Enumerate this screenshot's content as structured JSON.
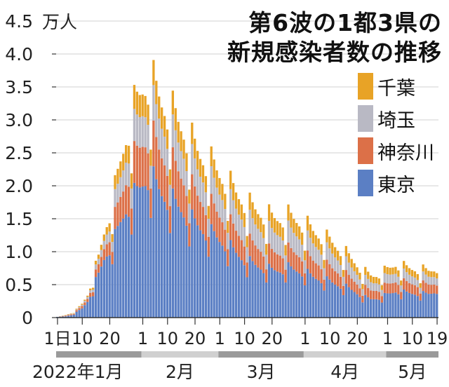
{
  "chart_data": {
    "type": "bar",
    "stacked": true,
    "title_line1": "第6波の1都3県の",
    "title_line2": "新規感染者数の推移",
    "unit": "万人",
    "ylim": [
      0,
      4.5
    ],
    "yticks": [
      "0",
      "0.5",
      "1.0",
      "1.5",
      "2.0",
      "2.5",
      "3.0",
      "3.5",
      "4.0",
      "4.5"
    ],
    "x_day_ticks": [
      "1日",
      "10",
      "20",
      "1",
      "10",
      "20",
      "1",
      "10",
      "20",
      "1",
      "10",
      "20",
      "1",
      "10",
      "19"
    ],
    "month_labels": [
      "2022年1月",
      "2月",
      "3月",
      "4月",
      "5月"
    ],
    "series": [
      {
        "name": "東京",
        "color": "#5b7fc4",
        "anchors": [
          [
            1,
            0.01
          ],
          [
            4,
            0.02
          ],
          [
            6,
            0.04
          ],
          [
            8,
            0.08
          ],
          [
            10,
            0.14
          ],
          [
            12,
            0.25
          ],
          [
            14,
            0.45
          ],
          [
            16,
            0.65
          ],
          [
            18,
            0.9
          ],
          [
            20,
            1.05
          ],
          [
            22,
            1.2
          ],
          [
            24,
            1.45
          ],
          [
            26,
            1.65
          ],
          [
            28,
            1.75
          ],
          [
            30,
            1.9
          ],
          [
            32,
            2.05
          ],
          [
            34,
            2.15
          ],
          [
            36,
            2.05
          ],
          [
            38,
            1.95
          ],
          [
            40,
            1.85
          ],
          [
            43,
            1.75
          ],
          [
            46,
            1.65
          ],
          [
            49,
            1.5
          ],
          [
            52,
            1.4
          ],
          [
            55,
            1.3
          ],
          [
            58,
            1.25
          ],
          [
            61,
            1.15
          ],
          [
            64,
            1.05
          ],
          [
            67,
            0.95
          ],
          [
            70,
            0.85
          ],
          [
            73,
            0.8
          ],
          [
            76,
            0.75
          ],
          [
            79,
            0.72
          ],
          [
            82,
            0.72
          ],
          [
            85,
            0.75
          ],
          [
            88,
            0.72
          ],
          [
            91,
            0.68
          ],
          [
            94,
            0.62
          ],
          [
            97,
            0.58
          ],
          [
            100,
            0.55
          ],
          [
            103,
            0.5
          ],
          [
            106,
            0.46
          ],
          [
            109,
            0.4
          ],
          [
            112,
            0.32
          ],
          [
            115,
            0.28
          ],
          [
            118,
            0.3
          ],
          [
            121,
            0.35
          ],
          [
            124,
            0.4
          ],
          [
            127,
            0.38
          ],
          [
            130,
            0.37
          ],
          [
            133,
            0.36
          ],
          [
            136,
            0.36
          ],
          [
            139,
            0.4
          ]
        ]
      },
      {
        "name": "神奈川",
        "color": "#dc7048",
        "anchors": [
          [
            1,
            0.0
          ],
          [
            4,
            0.01
          ],
          [
            8,
            0.02
          ],
          [
            12,
            0.05
          ],
          [
            16,
            0.12
          ],
          [
            20,
            0.22
          ],
          [
            24,
            0.38
          ],
          [
            28,
            0.55
          ],
          [
            32,
            0.62
          ],
          [
            36,
            0.62
          ],
          [
            40,
            0.58
          ],
          [
            44,
            0.55
          ],
          [
            48,
            0.5
          ],
          [
            52,
            0.45
          ],
          [
            56,
            0.42
          ],
          [
            60,
            0.38
          ],
          [
            64,
            0.35
          ],
          [
            68,
            0.32
          ],
          [
            72,
            0.3
          ],
          [
            76,
            0.28
          ],
          [
            80,
            0.27
          ],
          [
            84,
            0.27
          ],
          [
            88,
            0.26
          ],
          [
            92,
            0.25
          ],
          [
            96,
            0.24
          ],
          [
            100,
            0.22
          ],
          [
            104,
            0.2
          ],
          [
            108,
            0.17
          ],
          [
            112,
            0.14
          ],
          [
            116,
            0.13
          ],
          [
            120,
            0.14
          ],
          [
            124,
            0.16
          ],
          [
            128,
            0.15
          ],
          [
            132,
            0.15
          ],
          [
            136,
            0.14
          ],
          [
            139,
            0.14
          ]
        ]
      },
      {
        "name": "埼玉",
        "color": "#b9b9c4",
        "anchors": [
          [
            1,
            0.0
          ],
          [
            4,
            0.005
          ],
          [
            8,
            0.01
          ],
          [
            12,
            0.03
          ],
          [
            16,
            0.08
          ],
          [
            20,
            0.18
          ],
          [
            24,
            0.3
          ],
          [
            28,
            0.42
          ],
          [
            32,
            0.48
          ],
          [
            36,
            0.48
          ],
          [
            40,
            0.46
          ],
          [
            44,
            0.44
          ],
          [
            48,
            0.42
          ],
          [
            52,
            0.4
          ],
          [
            56,
            0.38
          ],
          [
            60,
            0.36
          ],
          [
            64,
            0.34
          ],
          [
            68,
            0.33
          ],
          [
            72,
            0.32
          ],
          [
            76,
            0.31
          ],
          [
            80,
            0.3
          ],
          [
            84,
            0.3
          ],
          [
            88,
            0.29
          ],
          [
            92,
            0.27
          ],
          [
            96,
            0.25
          ],
          [
            100,
            0.23
          ],
          [
            104,
            0.2
          ],
          [
            108,
            0.17
          ],
          [
            112,
            0.14
          ],
          [
            116,
            0.12
          ],
          [
            120,
            0.13
          ],
          [
            124,
            0.14
          ],
          [
            128,
            0.13
          ],
          [
            132,
            0.12
          ],
          [
            136,
            0.12
          ],
          [
            139,
            0.12
          ]
        ]
      },
      {
        "name": "千葉",
        "color": "#e8a326",
        "anchors": [
          [
            1,
            0.0
          ],
          [
            4,
            0.005
          ],
          [
            8,
            0.01
          ],
          [
            12,
            0.02
          ],
          [
            16,
            0.06
          ],
          [
            20,
            0.14
          ],
          [
            24,
            0.24
          ],
          [
            28,
            0.32
          ],
          [
            32,
            0.34
          ],
          [
            36,
            0.34
          ],
          [
            40,
            0.33
          ],
          [
            44,
            0.32
          ],
          [
            48,
            0.3
          ],
          [
            52,
            0.28
          ],
          [
            56,
            0.27
          ],
          [
            60,
            0.26
          ],
          [
            64,
            0.25
          ],
          [
            68,
            0.24
          ],
          [
            72,
            0.23
          ],
          [
            76,
            0.23
          ],
          [
            80,
            0.22
          ],
          [
            84,
            0.22
          ],
          [
            88,
            0.21
          ],
          [
            92,
            0.2
          ],
          [
            96,
            0.18
          ],
          [
            100,
            0.17
          ],
          [
            104,
            0.15
          ],
          [
            108,
            0.13
          ],
          [
            112,
            0.11
          ],
          [
            116,
            0.1
          ],
          [
            120,
            0.1
          ],
          [
            124,
            0.11
          ],
          [
            128,
            0.1
          ],
          [
            132,
            0.1
          ],
          [
            136,
            0.09
          ],
          [
            139,
            0.09
          ]
        ]
      }
    ],
    "day_count": 139,
    "weekly_pattern": [
      1.12,
      1.05,
      1.0,
      0.97,
      0.95,
      0.9,
      0.72
    ]
  }
}
